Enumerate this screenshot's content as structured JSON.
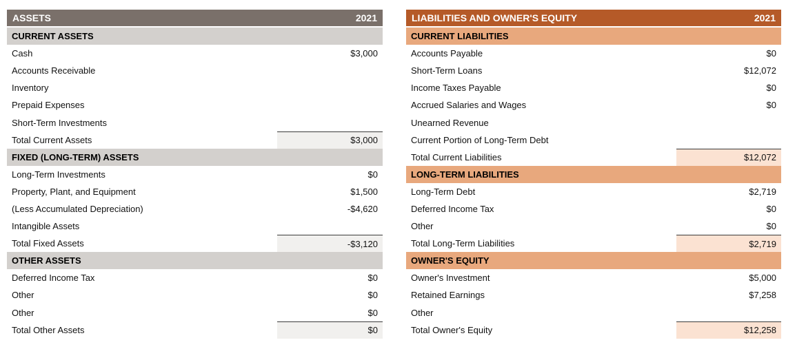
{
  "assets": {
    "title": "ASSETS",
    "year": "2021",
    "theme": {
      "header_bg": "#7a706a",
      "header_text": "#ffffff",
      "subheader_bg": "#d3d0cd",
      "total_bg": "#f1f0ee",
      "total_border": "#3a3a3a"
    },
    "sections": [
      {
        "name": "CURRENT ASSETS",
        "rows": [
          {
            "label": "Cash",
            "value": "$3,000"
          },
          {
            "label": "Accounts Receivable",
            "value": ""
          },
          {
            "label": "Inventory",
            "value": ""
          },
          {
            "label": "Prepaid Expenses",
            "value": ""
          },
          {
            "label": "Short-Term Investments",
            "value": ""
          }
        ],
        "total": {
          "label": "Total Current Assets",
          "value": "$3,000"
        }
      },
      {
        "name": "FIXED (LONG-TERM) ASSETS",
        "rows": [
          {
            "label": "Long-Term Investments",
            "value": "$0"
          },
          {
            "label": "Property, Plant, and Equipment",
            "value": "$1,500"
          },
          {
            "label": "(Less Accumulated Depreciation)",
            "value": "-$4,620"
          },
          {
            "label": "Intangible Assets",
            "value": ""
          }
        ],
        "total": {
          "label": "Total Fixed Assets",
          "value": "-$3,120"
        }
      },
      {
        "name": "OTHER ASSETS",
        "rows": [
          {
            "label": "Deferred Income Tax",
            "value": "$0"
          },
          {
            "label": "Other",
            "value": "$0"
          },
          {
            "label": "Other",
            "value": "$0"
          }
        ],
        "total": {
          "label": "Total Other Assets",
          "value": "$0"
        }
      }
    ]
  },
  "liabilities_equity": {
    "title": "LIABILITIES AND OWNER'S EQUITY",
    "year": "2021",
    "theme": {
      "header_bg": "#b55a28",
      "header_text": "#ffffff",
      "subheader_bg": "#e8a87d",
      "total_bg": "#fbe2d2",
      "total_border": "#3a3a3a"
    },
    "sections": [
      {
        "name": "CURRENT LIABILITIES",
        "rows": [
          {
            "label": "Accounts Payable",
            "value": "$0"
          },
          {
            "label": "Short-Term Loans",
            "value": "$12,072"
          },
          {
            "label": "Income Taxes Payable",
            "value": "$0"
          },
          {
            "label": "Accrued Salaries and Wages",
            "value": "$0"
          },
          {
            "label": "Unearned Revenue",
            "value": ""
          },
          {
            "label": "Current Portion of Long-Term Debt",
            "value": ""
          }
        ],
        "total": {
          "label": "Total Current Liabilities",
          "value": "$12,072"
        }
      },
      {
        "name": "LONG-TERM LIABILITIES",
        "rows": [
          {
            "label": "Long-Term Debt",
            "value": "$2,719"
          },
          {
            "label": "Deferred Income Tax",
            "value": "$0"
          },
          {
            "label": "Other",
            "value": "$0"
          }
        ],
        "total": {
          "label": "Total Long-Term Liabilities",
          "value": "$2,719"
        }
      },
      {
        "name": "OWNER'S EQUITY",
        "rows": [
          {
            "label": "Owner's Investment",
            "value": "$5,000"
          },
          {
            "label": "Retained Earnings",
            "value": "$7,258"
          },
          {
            "label": "Other",
            "value": ""
          }
        ],
        "total": {
          "label": "Total Owner's Equity",
          "value": "$12,258"
        }
      }
    ]
  }
}
